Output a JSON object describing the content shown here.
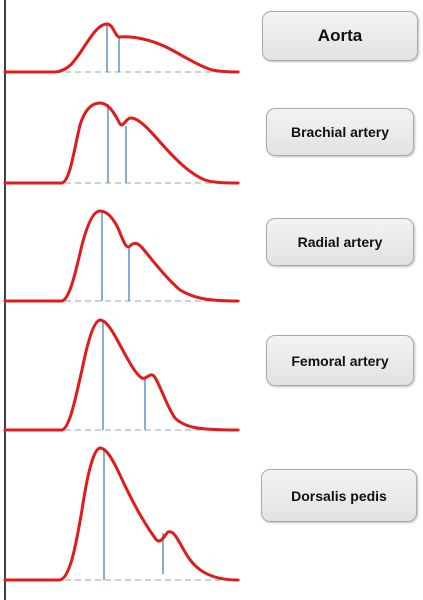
{
  "arteries": [
    {
      "label": "Aorta"
    },
    {
      "label": "Brachial artery"
    },
    {
      "label": "Radial artery"
    },
    {
      "label": "Femoral artery"
    },
    {
      "label": "Dorsalis pedis"
    }
  ],
  "colors": {
    "waveform": "#e01b1b",
    "marker": "#5b93c7",
    "baseline": "#b5b5b5",
    "axis": "#000000"
  }
}
